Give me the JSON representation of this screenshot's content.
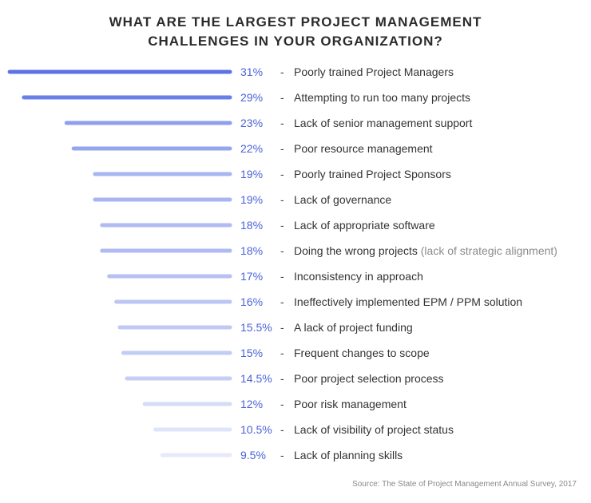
{
  "chart_data": {
    "type": "bar",
    "orientation": "horizontal",
    "title_lines": [
      "WHAT ARE THE LARGEST PROJECT MANAGEMENT",
      "CHALLENGES IN YOUR ORGANIZATION?"
    ],
    "separator": "-",
    "source": "Source: The State of Project Management Annual Survey, 2017",
    "bars": [
      {
        "label": "Poorly trained Project Managers",
        "value": 31,
        "value_label": "31%",
        "note": ""
      },
      {
        "label": "Attempting to run too many projects",
        "value": 29,
        "value_label": "29%",
        "note": ""
      },
      {
        "label": "Lack of senior management support",
        "value": 23,
        "value_label": "23%",
        "note": ""
      },
      {
        "label": "Poor resource management",
        "value": 22,
        "value_label": "22%",
        "note": ""
      },
      {
        "label": "Poorly trained Project Sponsors",
        "value": 19,
        "value_label": "19%",
        "note": ""
      },
      {
        "label": "Lack of governance",
        "value": 19,
        "value_label": "19%",
        "note": ""
      },
      {
        "label": "Lack of appropriate software",
        "value": 18,
        "value_label": "18%",
        "note": ""
      },
      {
        "label": "Doing the wrong projects",
        "value": 18,
        "value_label": "18%",
        "note": "(lack of strategic alignment)"
      },
      {
        "label": "Inconsistency in approach",
        "value": 17,
        "value_label": "17%",
        "note": ""
      },
      {
        "label": "Ineffectively implemented EPM / PPM solution",
        "value": 16,
        "value_label": "16%",
        "note": ""
      },
      {
        "label": "A lack of project funding",
        "value": 15.5,
        "value_label": "15.5%",
        "note": ""
      },
      {
        "label": "Frequent changes to scope",
        "value": 15,
        "value_label": "15%",
        "note": ""
      },
      {
        "label": "Poor project selection process",
        "value": 14.5,
        "value_label": "14.5%",
        "note": ""
      },
      {
        "label": "Poor risk management",
        "value": 12,
        "value_label": "12%",
        "note": ""
      },
      {
        "label": "Lack of visibility of project status",
        "value": 10.5,
        "value_label": "10.5%",
        "note": ""
      },
      {
        "label": "Lack of planning skills",
        "value": 9.5,
        "value_label": "9.5%",
        "note": ""
      }
    ],
    "colors": {
      "bar_dark": "#5b73e6",
      "bar_light": "#e6eafa",
      "value_text": "#4a63d8",
      "label_text": "#333333",
      "note_text": "#8c8c8c"
    }
  }
}
